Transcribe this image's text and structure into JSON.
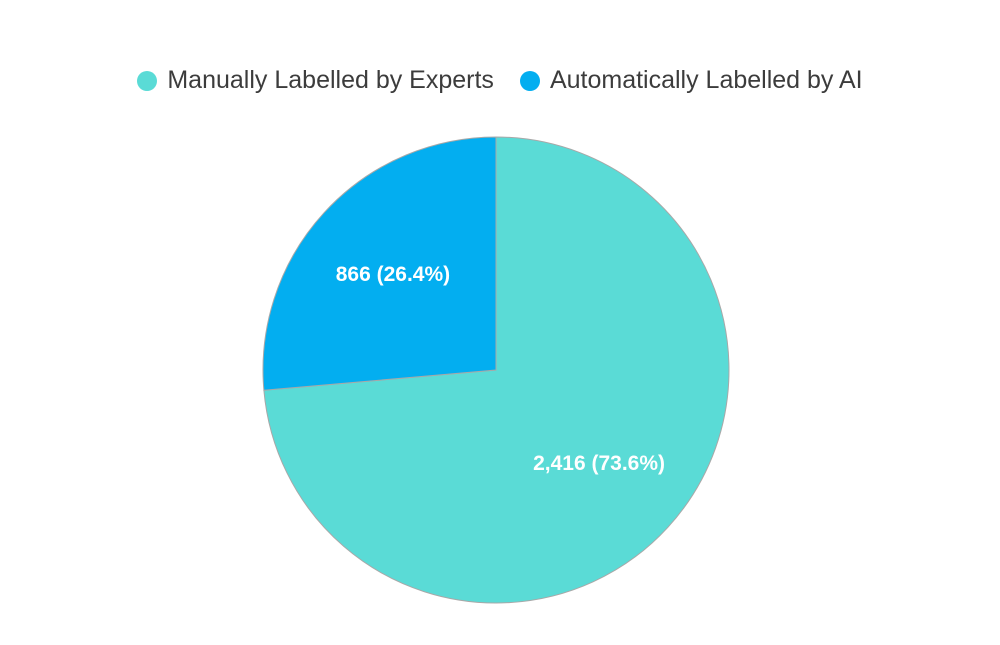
{
  "chart_data": {
    "type": "pie",
    "categories": [
      "Manually Labelled by Experts",
      "Automatically Labelled by AI"
    ],
    "values": [
      2416,
      866
    ],
    "percentages": [
      73.6,
      26.4
    ],
    "data_labels": [
      "2,416 (73.6%)",
      "866 (26.4%)"
    ],
    "colors": [
      "#5adbd6",
      "#03aef0"
    ],
    "legend": {
      "placement": "top",
      "entries": [
        "Manually Labelled by Experts",
        "Automatically Labelled by AI"
      ]
    },
    "slice_border_color": "#a8a8a8",
    "start_angle": "12 o'clock",
    "direction": "clockwise"
  }
}
